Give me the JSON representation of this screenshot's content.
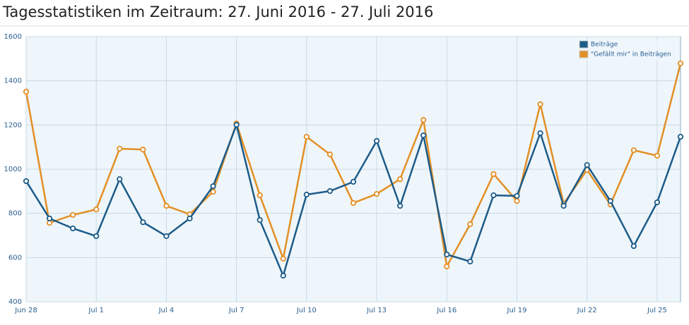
{
  "chart_data": {
    "type": "line",
    "title": "Tagesstatistiken im Zeitraum: 27. Juni 2016 - 27. Juli 2016",
    "categories": [
      "Jun 28",
      null,
      null,
      "Jul 1",
      null,
      null,
      "Jul 4",
      null,
      null,
      "Jul 7",
      null,
      null,
      "Jul 10",
      null,
      null,
      "Jul 13",
      null,
      null,
      "Jul 16",
      null,
      null,
      "Jul 19",
      null,
      null,
      "Jul 22",
      null,
      null,
      "Jul 25",
      null
    ],
    "series": [
      {
        "name": "Beiträge",
        "color": "#1d5b88",
        "values": [
          946,
          777,
          732,
          697,
          955,
          760,
          697,
          777,
          923,
          1201,
          770,
          518,
          885,
          901,
          943,
          1128,
          834,
          1153,
          614,
          582,
          882,
          879,
          1163,
          834,
          1019,
          856,
          652,
          850,
          1147
        ]
      },
      {
        "name": "\"Gefällt mir\" in Beiträgen",
        "color": "#e38f25",
        "values": [
          1351,
          757,
          793,
          818,
          1093,
          1089,
          834,
          796,
          898,
          1207,
          882,
          595,
          1147,
          1067,
          847,
          888,
          955,
          1223,
          560,
          751,
          978,
          856,
          1294,
          844,
          997,
          840,
          1086,
          1061,
          1479
        ]
      }
    ],
    "ylim": [
      400,
      1600
    ],
    "yticks": [
      400,
      600,
      800,
      1000,
      1200,
      1400,
      1600
    ],
    "grid": true,
    "legend": "top-right"
  }
}
